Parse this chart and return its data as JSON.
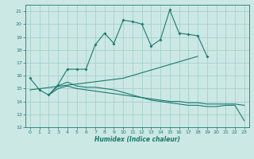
{
  "title": "",
  "xlabel": "Humidex (Indice chaleur)",
  "x": [
    0,
    1,
    2,
    3,
    4,
    5,
    6,
    7,
    8,
    9,
    10,
    11,
    12,
    13,
    14,
    15,
    16,
    17,
    18,
    19,
    20,
    21,
    22,
    23
  ],
  "line1_x": [
    0,
    1,
    2,
    3,
    4,
    5,
    6,
    7,
    8,
    9,
    10,
    11,
    12,
    13,
    14,
    15,
    16,
    17,
    18,
    19
  ],
  "line1_y": [
    15.8,
    14.9,
    14.5,
    15.3,
    16.5,
    16.5,
    16.5,
    18.4,
    19.3,
    18.5,
    20.3,
    20.2,
    20.0,
    18.3,
    18.8,
    21.1,
    19.3,
    19.2,
    19.1,
    17.5
  ],
  "line2_x": [
    2,
    3,
    4,
    5,
    6,
    7,
    8,
    9,
    10,
    11,
    12,
    13,
    14,
    15,
    16,
    17,
    18,
    19,
    20,
    21,
    22,
    23
  ],
  "line2_y": [
    14.5,
    15.2,
    15.5,
    15.2,
    15.1,
    15.1,
    15.0,
    14.9,
    14.7,
    14.5,
    14.3,
    14.1,
    14.0,
    13.9,
    13.8,
    13.7,
    13.7,
    13.6,
    13.6,
    13.7,
    13.7,
    12.5
  ],
  "line3_x": [
    2,
    3,
    4,
    5,
    6,
    7,
    8,
    9,
    10,
    11,
    12,
    13,
    14,
    15,
    16,
    17,
    18,
    19,
    20,
    21,
    22,
    23
  ],
  "line3_y": [
    14.5,
    15.0,
    15.2,
    15.0,
    14.9,
    14.8,
    14.7,
    14.6,
    14.5,
    14.4,
    14.3,
    14.2,
    14.1,
    14.0,
    14.0,
    13.9,
    13.9,
    13.8,
    13.8,
    13.8,
    13.8,
    13.7
  ],
  "line4_x": [
    0,
    10,
    18
  ],
  "line4_y": [
    14.9,
    15.8,
    17.5
  ],
  "ylim": [
    12,
    21.5
  ],
  "xlim": [
    -0.5,
    23.5
  ],
  "yticks": [
    12,
    13,
    14,
    15,
    16,
    17,
    18,
    19,
    20,
    21
  ],
  "xticks": [
    0,
    1,
    2,
    3,
    4,
    5,
    6,
    7,
    8,
    9,
    10,
    11,
    12,
    13,
    14,
    15,
    16,
    17,
    18,
    19,
    20,
    21,
    22,
    23
  ],
  "line_color": "#1a7a6e",
  "bg_color": "#cce8e5",
  "grid_color": "#9eccc8"
}
